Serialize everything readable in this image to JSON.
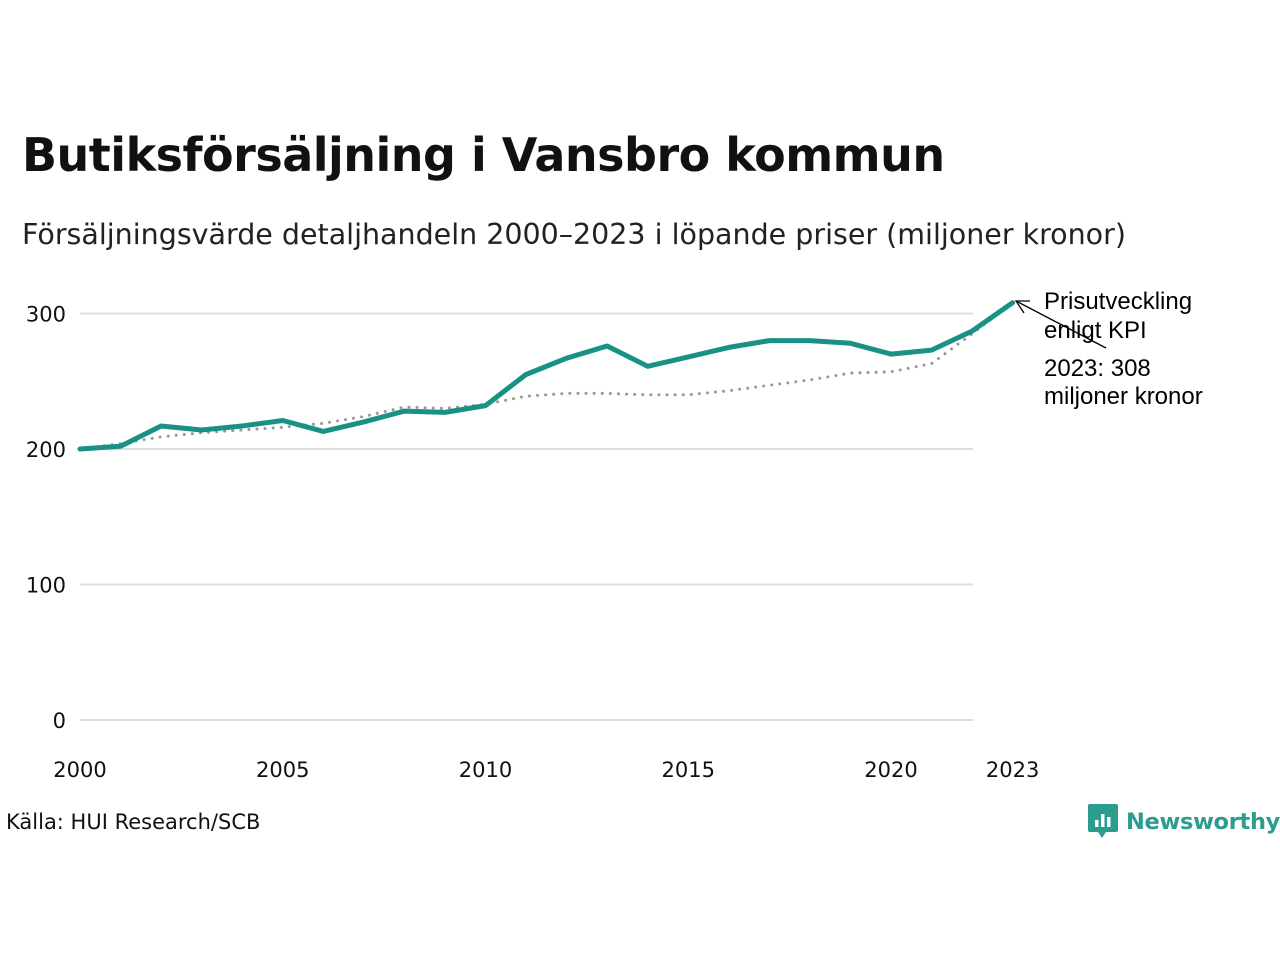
{
  "title": "Butiksförsäljning i Vansbro kommun",
  "subtitle": "Försäljningsvärde detaljhandeln 2000–2023 i löpande priser (miljoner kronor)",
  "source": "Källa: HUI Research/SCB",
  "brand": "Newsworthy",
  "colors": {
    "sales": "#1a9185",
    "kpi": "#9a9a9a",
    "grid": "#dddddd",
    "brand": "#2a9d8f"
  },
  "chart_data": {
    "type": "line",
    "x": [
      2000,
      2001,
      2002,
      2003,
      2004,
      2005,
      2006,
      2007,
      2008,
      2009,
      2010,
      2011,
      2012,
      2013,
      2014,
      2015,
      2016,
      2017,
      2018,
      2019,
      2020,
      2021,
      2022,
      2023
    ],
    "series": [
      {
        "name": "Försäljningsvärde",
        "style": "solid",
        "values": [
          200,
          202,
          217,
          214,
          217,
          221,
          213,
          220,
          228,
          227,
          232,
          255,
          267,
          276,
          261,
          268,
          275,
          280,
          280,
          278,
          270,
          273,
          287,
          308
        ]
      },
      {
        "name": "Prisutveckling enligt KPI",
        "style": "dotted",
        "values": [
          200,
          204,
          209,
          212,
          214,
          216,
          219,
          224,
          231,
          230,
          233,
          239,
          241,
          241,
          240,
          240,
          243,
          247,
          251,
          256,
          257,
          263,
          285,
          308
        ]
      }
    ],
    "ylim": [
      0,
      308
    ],
    "yticks": [
      0,
      100,
      200,
      300
    ],
    "xticks": [
      2000,
      2005,
      2010,
      2015,
      2020,
      2023
    ],
    "annotations": {
      "kpi_label_line1": "Prisutveckling",
      "kpi_label_line2": "enligt KPI",
      "value_label_line1": "2023: 308",
      "value_label_line2": "miljoner kronor"
    }
  }
}
